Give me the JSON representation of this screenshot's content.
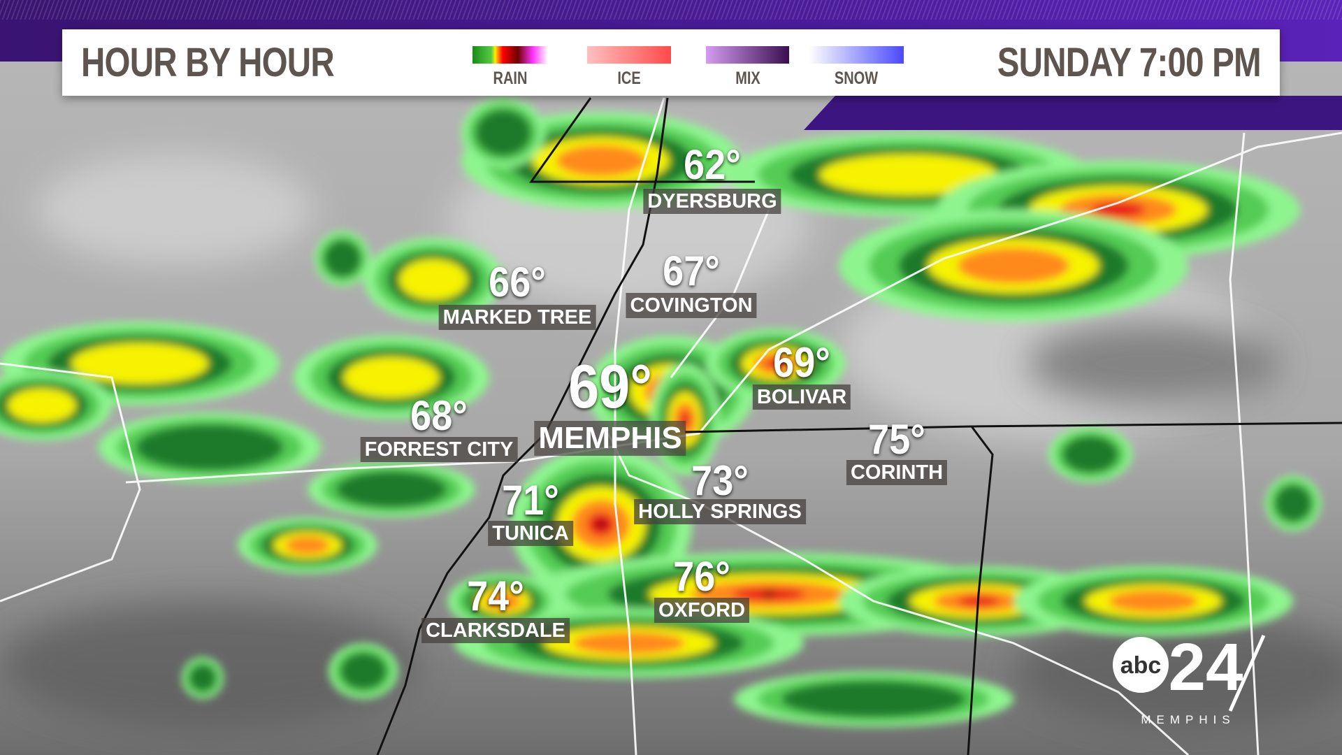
{
  "header": {
    "title": "HOUR BY HOUR",
    "time": "SUNDAY 7:00 PM"
  },
  "legend": [
    {
      "label": "RAIN",
      "gradient": "linear-gradient(90deg,#1a8a1a,#55cc44 25%,#ffee00 30%,#ff0000 40%,#700000 60%,#ff33ff 80%,#ffffff)"
    },
    {
      "label": "ICE",
      "gradient": "linear-gradient(90deg,#ffc0c0,#ff4a4a)"
    },
    {
      "label": "MIX",
      "gradient": "linear-gradient(90deg,#d49cf0,#3a0f50)"
    },
    {
      "label": "SNOW",
      "gradient": "linear-gradient(90deg,#ffffff,#4a4aff)"
    }
  ],
  "cities": [
    {
      "name": "DYERSBURG",
      "temp": "62°"
    },
    {
      "name": "MARKED TREE",
      "temp": "66°"
    },
    {
      "name": "COVINGTON",
      "temp": "67°"
    },
    {
      "name": "MEMPHIS",
      "temp": "69°"
    },
    {
      "name": "BOLIVAR",
      "temp": "69°"
    },
    {
      "name": "FORREST CITY",
      "temp": "68°"
    },
    {
      "name": "CORINTH",
      "temp": "75°"
    },
    {
      "name": "HOLLY SPRINGS",
      "temp": "73°"
    },
    {
      "name": "TUNICA",
      "temp": "71°"
    },
    {
      "name": "OXFORD",
      "temp": "76°"
    },
    {
      "name": "CLARKSDALE",
      "temp": "74°"
    }
  ],
  "logo": {
    "network": "abc",
    "channel": "24",
    "city": "MEMPHIS"
  }
}
